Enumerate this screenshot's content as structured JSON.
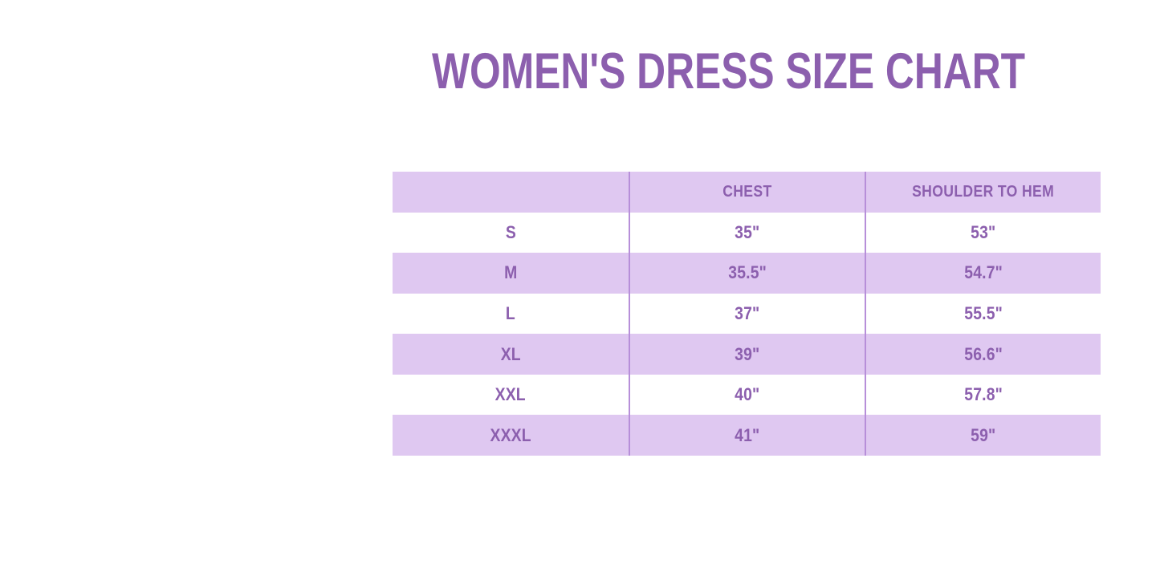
{
  "page": {
    "background": "#ffffff"
  },
  "header": {
    "title": "WOMEN'S DRESS SIZE CHART"
  },
  "colors": {
    "title_text": "#8c5fae",
    "cell_text": "#8c5fae",
    "stripe_lavender": "#dfc8f1",
    "stripe_white": "#ffffff",
    "column_divider": "#b78fd9"
  },
  "chart_data": {
    "type": "table",
    "title": "WOMEN'S DRESS SIZE CHART",
    "columns": [
      "",
      "CHEST",
      "SHOULDER TO HEM"
    ],
    "rows": [
      {
        "size": "S",
        "chest": "35\"",
        "shoulder_to_hem": "53\""
      },
      {
        "size": "M",
        "chest": "35.5\"",
        "shoulder_to_hem": "54.7\""
      },
      {
        "size": "L",
        "chest": "37\"",
        "shoulder_to_hem": "55.5\""
      },
      {
        "size": "XL",
        "chest": "39\"",
        "shoulder_to_hem": "56.6\""
      },
      {
        "size": "XXL",
        "chest": "40\"",
        "shoulder_to_hem": "57.8\""
      },
      {
        "size": "XXXL",
        "chest": "41\"",
        "shoulder_to_hem": "59\""
      }
    ],
    "layout": {
      "header_background": "lavender",
      "row_striping": "alternating white/lavender starting with white",
      "grid": "vertical dividers only, no outer border"
    }
  }
}
